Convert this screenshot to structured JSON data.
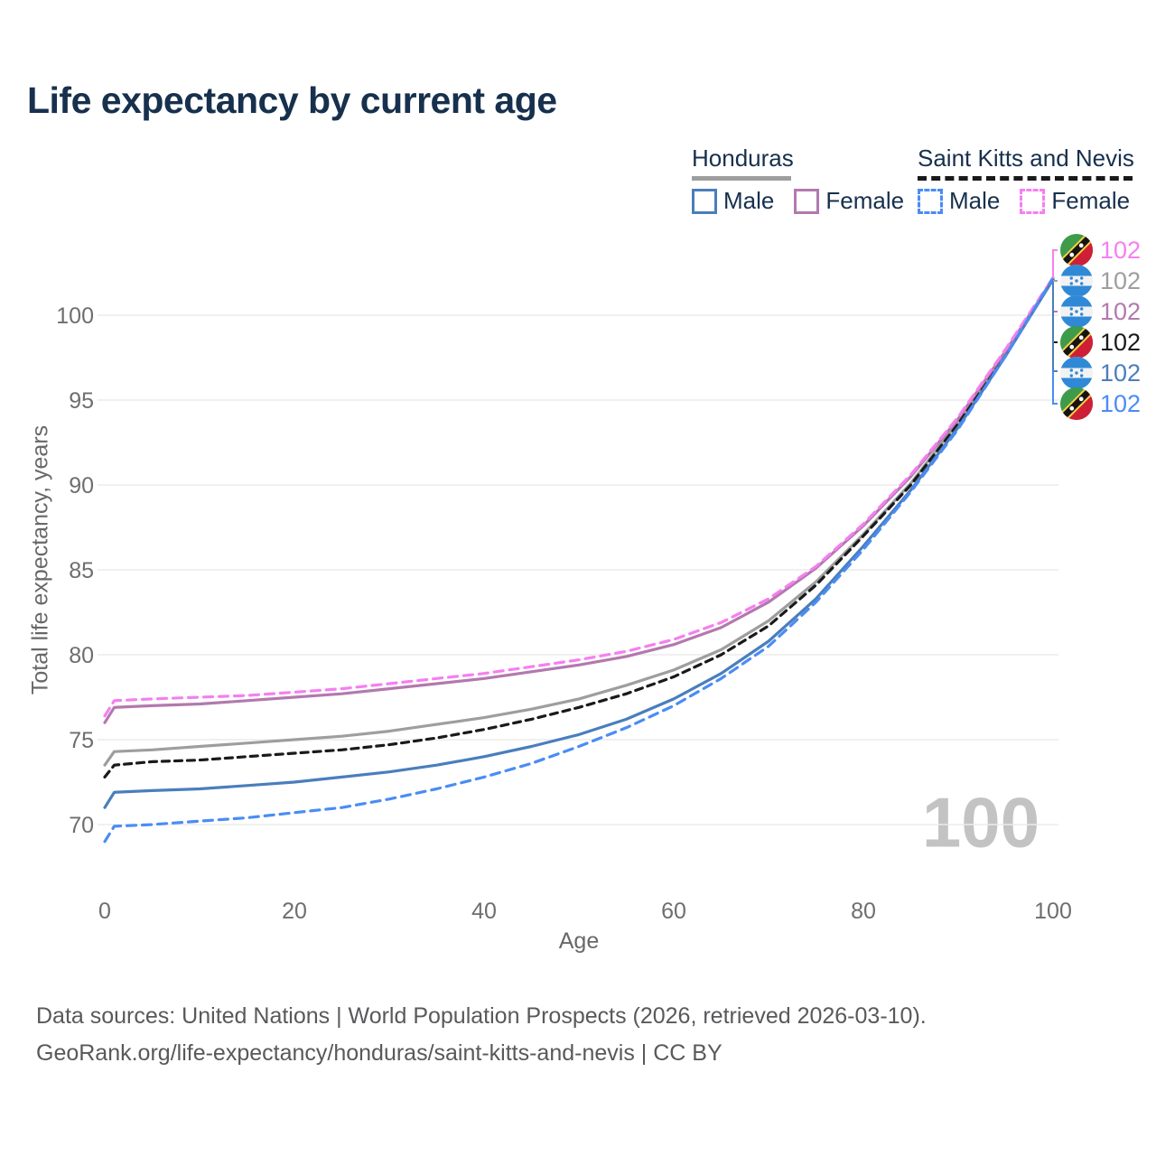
{
  "title": "Life expectancy by current age",
  "legend": {
    "groups": [
      {
        "label": "Honduras",
        "underline_style": "solid",
        "underline_color": "#9e9e9e",
        "items": [
          {
            "label": "Male",
            "color": "#4a7ebc",
            "dashed": false
          },
          {
            "label": "Female",
            "color": "#b279ae",
            "dashed": false
          }
        ]
      },
      {
        "label": "Saint Kitts and Nevis",
        "underline_style": "dashed",
        "underline_color": "#1a1a1a",
        "items": [
          {
            "label": "Male",
            "color": "#4a8cf5",
            "dashed": true
          },
          {
            "label": "Female",
            "color": "#f57ff0",
            "dashed": true
          }
        ]
      }
    ]
  },
  "watermark": "100",
  "footer": {
    "line1": "Data sources: United Nations | World Population Prospects (2026, retrieved 2026-03-10).",
    "line2": "GeoRank.org/life-expectancy/honduras/saint-kitts-and-nevis | CC BY"
  },
  "chart_data": {
    "type": "line",
    "title": "Life expectancy by current age",
    "xlabel": "Age",
    "ylabel": "Total life expectancy, years",
    "xlim": [
      0,
      100
    ],
    "ylim": [
      68,
      103
    ],
    "xticks": [
      0,
      20,
      40,
      60,
      80,
      100
    ],
    "yticks": [
      70,
      75,
      80,
      85,
      90,
      95,
      100
    ],
    "grid": "horizontal",
    "legend_position": "top-right",
    "x": [
      0,
      1,
      5,
      10,
      15,
      20,
      25,
      30,
      35,
      40,
      45,
      50,
      55,
      60,
      65,
      70,
      75,
      80,
      85,
      90,
      95,
      100
    ],
    "series": [
      {
        "name": "Honduras",
        "country": "Honduras",
        "color": "#9e9e9e",
        "dashed": false,
        "values": [
          73.5,
          74.3,
          74.4,
          74.6,
          74.8,
          75.0,
          75.2,
          75.5,
          75.9,
          76.3,
          76.8,
          77.4,
          78.2,
          79.1,
          80.3,
          82.0,
          84.3,
          87.1,
          90.1,
          93.7,
          97.8,
          102.1
        ]
      },
      {
        "name": "Saint Kitts and Nevis",
        "country": "Saint Kitts and Nevis",
        "color": "#1a1a1a",
        "dashed": true,
        "dash": "8 6",
        "values": [
          72.8,
          73.5,
          73.7,
          73.8,
          74.0,
          74.2,
          74.4,
          74.7,
          75.1,
          75.6,
          76.2,
          76.9,
          77.7,
          78.7,
          80.0,
          81.7,
          84.1,
          87.0,
          90.0,
          93.6,
          97.8,
          102.1
        ]
      },
      {
        "name": "Honduras Female",
        "country": "Honduras",
        "color": "#b279ae",
        "dashed": false,
        "values": [
          76.0,
          76.9,
          77.0,
          77.1,
          77.3,
          77.5,
          77.7,
          78.0,
          78.3,
          78.6,
          79.0,
          79.4,
          79.9,
          80.6,
          81.6,
          83.1,
          85.1,
          87.6,
          90.5,
          93.9,
          97.9,
          102.1
        ]
      },
      {
        "name": "Saint Kitts and Nevis Female",
        "country": "Saint Kitts and Nevis",
        "color": "#f57ff0",
        "dashed": true,
        "dash": "10 7",
        "values": [
          76.4,
          77.3,
          77.4,
          77.5,
          77.6,
          77.8,
          78.0,
          78.3,
          78.6,
          78.9,
          79.3,
          79.7,
          80.2,
          80.9,
          81.9,
          83.3,
          85.2,
          87.7,
          90.6,
          94.0,
          98.0,
          102.2
        ]
      },
      {
        "name": "Honduras Male",
        "country": "Honduras",
        "color": "#4a7ebc",
        "dashed": false,
        "values": [
          71.0,
          71.9,
          72.0,
          72.1,
          72.3,
          72.5,
          72.8,
          73.1,
          73.5,
          74.0,
          74.6,
          75.3,
          76.2,
          77.4,
          78.9,
          80.8,
          83.3,
          86.4,
          89.7,
          93.4,
          97.6,
          102.1
        ]
      },
      {
        "name": "Saint Kitts and Nevis Male",
        "country": "Saint Kitts and Nevis",
        "color": "#4a8cf5",
        "dashed": true,
        "dash": "10 7",
        "values": [
          69.0,
          69.9,
          70.0,
          70.2,
          70.4,
          70.7,
          71.0,
          71.5,
          72.1,
          72.8,
          73.6,
          74.6,
          75.7,
          77.0,
          78.6,
          80.5,
          83.1,
          86.2,
          89.6,
          93.3,
          97.6,
          102.2
        ]
      }
    ],
    "end_labels": [
      {
        "series": "Saint Kitts and Nevis Female",
        "value": "102",
        "color": "#f57ff0",
        "flag": "kn"
      },
      {
        "series": "Honduras",
        "value": "102",
        "color": "#9e9e9e",
        "flag": "hn"
      },
      {
        "series": "Honduras Female",
        "value": "102",
        "color": "#b279ae",
        "flag": "hn"
      },
      {
        "series": "Saint Kitts and Nevis",
        "value": "102",
        "color": "#1a1a1a",
        "flag": "kn"
      },
      {
        "series": "Honduras Male",
        "value": "102",
        "color": "#4a7ebc",
        "flag": "hn"
      },
      {
        "series": "Saint Kitts and Nevis Male",
        "value": "102",
        "color": "#4a8cf5",
        "flag": "kn"
      }
    ]
  }
}
